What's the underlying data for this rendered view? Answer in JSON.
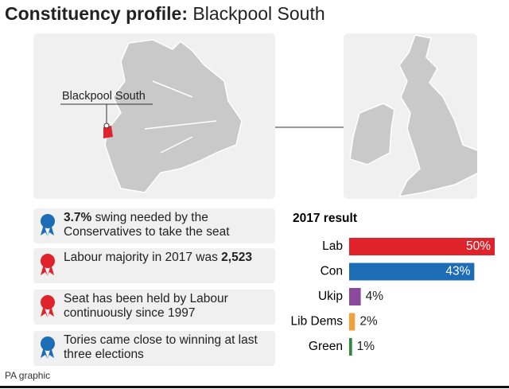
{
  "header": {
    "title_bold": "Constituency profile:",
    "title_rest": "Blackpool South"
  },
  "map": {
    "label": "Blackpool South"
  },
  "bullets": [
    {
      "bold": "3.7%",
      "text": "swing needed by the Conservatives to take the seat"
    },
    {
      "text": "Labour majority in 2017 was",
      "bold": "2,523"
    },
    {
      "text": "Seat has been held by Labour continuously since 1997"
    },
    {
      "text": "Tories came close to winning at last three elections"
    }
  ],
  "footer": "PA graphic",
  "chart_data": {
    "type": "bar",
    "orientation": "horizontal",
    "title": "2017 result",
    "categories": [
      "Lab",
      "Con",
      "Ukip",
      "Lib Dems",
      "Green"
    ],
    "values": [
      50,
      43,
      4,
      2,
      1
    ],
    "value_labels": [
      "50%",
      "43%",
      "4%",
      "2%",
      "1%"
    ],
    "colors": [
      "#e0232b",
      "#1c6db5",
      "#8a4a9b",
      "#f2a03a",
      "#2d8a3a"
    ],
    "xlim": [
      0,
      50
    ]
  }
}
